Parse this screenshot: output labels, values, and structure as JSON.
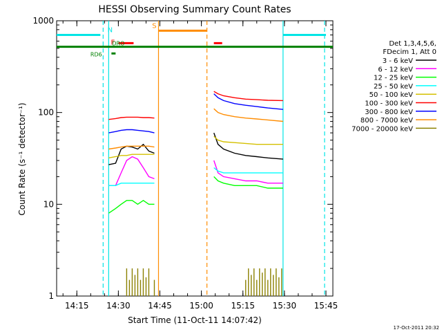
{
  "chart_data": {
    "type": "line",
    "title": "HESSI Observing Summary Count Rates",
    "xlabel": "Start Time (11-Oct-11 14:07:42)",
    "ylabel": "Count Rate (s⁻¹ detector⁻¹)",
    "yscale": "log",
    "xlim": [
      "14:07:42",
      "15:47:30"
    ],
    "ylim": [
      1,
      1000
    ],
    "x_ticks": [
      "14:15",
      "14:30",
      "14:45",
      "15:00",
      "15:15",
      "15:30",
      "15:45"
    ],
    "y_ticks": [
      "1",
      "10",
      "100",
      "1000"
    ],
    "grid": false,
    "legend": {
      "position": "right",
      "header": [
        "Det 1,3,4,5,6,",
        "FDecim 1, Att 0"
      ],
      "entries": [
        {
          "label": "3 - 6 keV",
          "color": "#000000"
        },
        {
          "label": "6 - 12 keV",
          "color": "#ff00ff"
        },
        {
          "label": "12 - 25 keV",
          "color": "#00ff00"
        },
        {
          "label": "25 - 50 keV",
          "color": "#00ffff"
        },
        {
          "label": "50 - 100 keV",
          "color": "#d4c000"
        },
        {
          "label": "100 - 300 keV",
          "color": "#ff0000"
        },
        {
          "label": "300 - 800 keV",
          "color": "#0000ff"
        },
        {
          "label": "800 - 7000 keV",
          "color": "#ff8c00"
        },
        {
          "label": "7000 - 20000 keV",
          "color": "#8b8000"
        }
      ]
    },
    "segments": [
      {
        "start": "14:26:30",
        "end": "14:43:00"
      },
      {
        "start": "15:04:30",
        "end": "15:29:30"
      }
    ],
    "series": [
      {
        "name": "3 - 6 keV",
        "color": "#000000",
        "x": [
          "14:26:30",
          "14:29:00",
          "14:31:00",
          "14:33:00",
          "14:35:00",
          "14:37:00",
          "14:39:00",
          "14:41:00",
          "14:43:00",
          "15:04:30",
          "15:06:00",
          "15:08:00",
          "15:12:00",
          "15:16:00",
          "15:20:00",
          "15:24:00",
          "15:29:30"
        ],
        "y": [
          27,
          28,
          40,
          43,
          42,
          40,
          45,
          38,
          36,
          60,
          45,
          40,
          36,
          34,
          33,
          32,
          31
        ]
      },
      {
        "name": "6 - 12 keV",
        "color": "#ff00ff",
        "x": [
          "14:26:30",
          "14:29:00",
          "14:31:00",
          "14:33:00",
          "14:35:00",
          "14:37:00",
          "14:39:00",
          "14:41:00",
          "14:43:00",
          "15:04:30",
          "15:06:00",
          "15:08:00",
          "15:12:00",
          "15:16:00",
          "15:20:00",
          "15:24:00",
          "15:29:30"
        ],
        "y": [
          16,
          16,
          22,
          30,
          33,
          31,
          25,
          20,
          19,
          30,
          22,
          20,
          19,
          18,
          18,
          17,
          17
        ]
      },
      {
        "name": "12 - 25 keV",
        "color": "#00ff00",
        "x": [
          "14:26:30",
          "14:29:00",
          "14:31:00",
          "14:33:00",
          "14:35:00",
          "14:37:00",
          "14:39:00",
          "14:41:00",
          "14:43:00",
          "15:04:30",
          "15:06:00",
          "15:08:00",
          "15:12:00",
          "15:16:00",
          "15:20:00",
          "15:24:00",
          "15:29:30"
        ],
        "y": [
          8,
          9,
          10,
          11,
          11,
          10,
          11,
          10,
          10,
          20,
          18,
          17,
          16,
          16,
          16,
          15,
          15
        ]
      },
      {
        "name": "25 - 50 keV",
        "color": "#00ffff",
        "x": [
          "14:26:30",
          "14:29:00",
          "14:31:00",
          "14:33:00",
          "14:35:00",
          "14:37:00",
          "14:39:00",
          "14:41:00",
          "14:43:00",
          "15:04:30",
          "15:06:00",
          "15:08:00",
          "15:12:00",
          "15:16:00",
          "15:20:00",
          "15:24:00",
          "15:29:30"
        ],
        "y": [
          16,
          16,
          17,
          17,
          17,
          17,
          17,
          17,
          17,
          25,
          23,
          22,
          22,
          22,
          22,
          22,
          22
        ]
      },
      {
        "name": "50 - 100 keV",
        "color": "#d4c000",
        "x": [
          "14:26:30",
          "14:29:00",
          "14:31:00",
          "14:33:00",
          "14:35:00",
          "14:37:00",
          "14:39:00",
          "14:41:00",
          "14:43:00",
          "15:04:30",
          "15:06:00",
          "15:08:00",
          "15:12:00",
          "15:16:00",
          "15:20:00",
          "15:24:00",
          "15:29:30"
        ],
        "y": [
          32,
          33,
          34,
          34,
          35,
          35,
          35,
          35,
          35,
          55,
          50,
          48,
          47,
          46,
          45,
          45,
          45
        ]
      },
      {
        "name": "100 - 300 keV",
        "color": "#ff0000",
        "x": [
          "14:26:30",
          "14:29:00",
          "14:31:00",
          "14:33:00",
          "14:35:00",
          "14:37:00",
          "14:39:00",
          "14:41:00",
          "14:43:00",
          "15:04:30",
          "15:06:00",
          "15:08:00",
          "15:12:00",
          "15:16:00",
          "15:20:00",
          "15:24:00",
          "15:29:30"
        ],
        "y": [
          84,
          86,
          88,
          89,
          89,
          89,
          88,
          88,
          87,
          170,
          160,
          152,
          145,
          140,
          138,
          136,
          135
        ]
      },
      {
        "name": "300 - 800 keV",
        "color": "#0000ff",
        "x": [
          "14:26:30",
          "14:29:00",
          "14:31:00",
          "14:33:00",
          "14:35:00",
          "14:37:00",
          "14:39:00",
          "14:41:00",
          "14:43:00",
          "15:04:30",
          "15:06:00",
          "15:08:00",
          "15:12:00",
          "15:16:00",
          "15:20:00",
          "15:24:00",
          "15:29:30"
        ],
        "y": [
          60,
          62,
          64,
          65,
          65,
          64,
          63,
          62,
          60,
          160,
          145,
          135,
          125,
          120,
          116,
          112,
          108
        ]
      },
      {
        "name": "800 - 7000 keV",
        "color": "#ff8c00",
        "x": [
          "14:26:30",
          "14:29:00",
          "14:31:00",
          "14:33:00",
          "14:35:00",
          "14:37:00",
          "14:39:00",
          "14:41:00",
          "14:43:00",
          "15:04:30",
          "15:06:00",
          "15:08:00",
          "15:12:00",
          "15:16:00",
          "15:20:00",
          "15:24:00",
          "15:29:30"
        ],
        "y": [
          40,
          41,
          42,
          43,
          43,
          43,
          43,
          43,
          42,
          110,
          100,
          95,
          90,
          87,
          85,
          83,
          80
        ]
      }
    ],
    "bursts_7000_20000": {
      "color": "#8b8000",
      "x": [
        "14:33:00",
        "14:34:00",
        "14:35:00",
        "14:36:00",
        "14:37:00",
        "14:38:00",
        "14:39:00",
        "14:40:00",
        "14:41:00",
        "14:43:00",
        "15:16:00",
        "15:17:00",
        "15:18:00",
        "15:19:00",
        "15:20:00",
        "15:21:00",
        "15:22:00",
        "15:23:00",
        "15:24:00",
        "15:25:00",
        "15:26:00",
        "15:27:00",
        "15:28:00",
        "15:29:00"
      ],
      "y": [
        2,
        1.5,
        2,
        1.7,
        2,
        1.5,
        2,
        1.6,
        2,
        1.5,
        1.5,
        2,
        1.7,
        2,
        1.5,
        2,
        1.8,
        2,
        1.5,
        2,
        1.7,
        2,
        1.6,
        2
      ]
    },
    "vertical_markers": [
      {
        "time": "14:24:30",
        "color": "#00e5e5",
        "style": "dashed"
      },
      {
        "time": "14:26:30",
        "color": "#00e5e5",
        "style": "solid"
      },
      {
        "time": "14:44:30",
        "color": "#ff8c00",
        "style": "solid"
      },
      {
        "time": "15:02:00",
        "color": "#ff8c00",
        "style": "dashed"
      },
      {
        "time": "15:29:30",
        "color": "#00e5e5",
        "style": "solid"
      },
      {
        "time": "15:44:30",
        "color": "#00e5e5",
        "style": "dashed"
      }
    ],
    "flag_bars": [
      {
        "label": "N",
        "color": "#00e5e5",
        "level": 700,
        "intervals": [
          [
            "14:07:42",
            "14:23:30"
          ],
          [
            "15:29:30",
            "15:45:00"
          ]
        ]
      },
      {
        "label": "S",
        "color": "#ff8c00",
        "level": 780,
        "intervals": [
          [
            "14:44:30",
            "15:02:00"
          ]
        ]
      },
      {
        "label": "F",
        "color": "#ff0000",
        "level": 570,
        "intervals": [
          [
            "14:30:00",
            "14:35:30"
          ],
          [
            "15:04:30",
            "15:07:30"
          ]
        ]
      },
      {
        "label": "DRO",
        "color": "#008000",
        "level": 520,
        "intervals": [
          [
            "14:07:42",
            "15:47:30"
          ]
        ]
      },
      {
        "label": "RD6",
        "color": "#008000",
        "level": 440,
        "intervals": [
          [
            "14:27:30",
            "14:29:00"
          ]
        ]
      }
    ],
    "timestamp": "17-Oct-2011 20:32"
  }
}
